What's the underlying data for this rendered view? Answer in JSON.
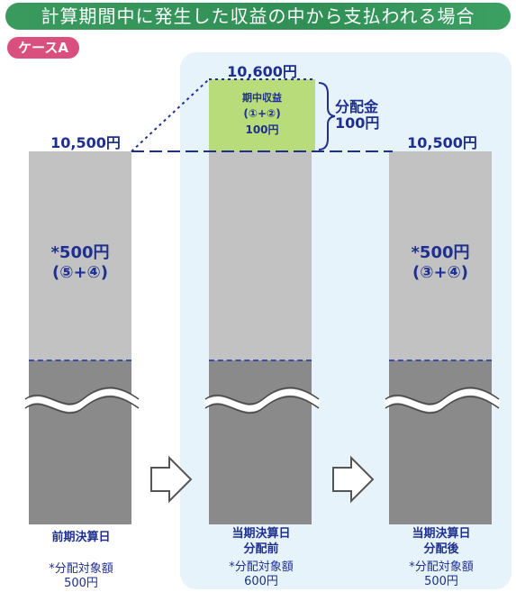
{
  "banner": {
    "title": "計算期間中に発生した収益の中から支払われる場合"
  },
  "case_label": "ケースA",
  "columns": [
    {
      "top_value": "10,500円",
      "amount": "*500円",
      "breakdown": "(⑤+④)",
      "label_lines": [
        "前期決算日"
      ],
      "target_label": "*分配対象額",
      "target_value": "500円"
    },
    {
      "top_value": "10,600円",
      "label_lines": [
        "当期決算日",
        "分配前"
      ],
      "target_label": "*分配対象額",
      "target_value": "600円"
    },
    {
      "top_value": "10,500円",
      "amount": "*500円",
      "breakdown": "(③+④)",
      "label_lines": [
        "当期決算日",
        "分配後"
      ],
      "target_label": "*分配対象額",
      "target_value": "500円"
    }
  ],
  "income_box": {
    "title": "期中収益",
    "formula": "(①+②)",
    "value": "100円"
  },
  "distribution": {
    "label": "分配金",
    "value": "100円"
  },
  "colors": {
    "banner": "#2f8f55",
    "badge": "#d94f7e",
    "panel": "#e6f3fb",
    "upper_bar": "#c2c2c2",
    "lower_bar": "#8a8a8a",
    "income": "#b9dc7a",
    "text": "#1f2f8f"
  }
}
